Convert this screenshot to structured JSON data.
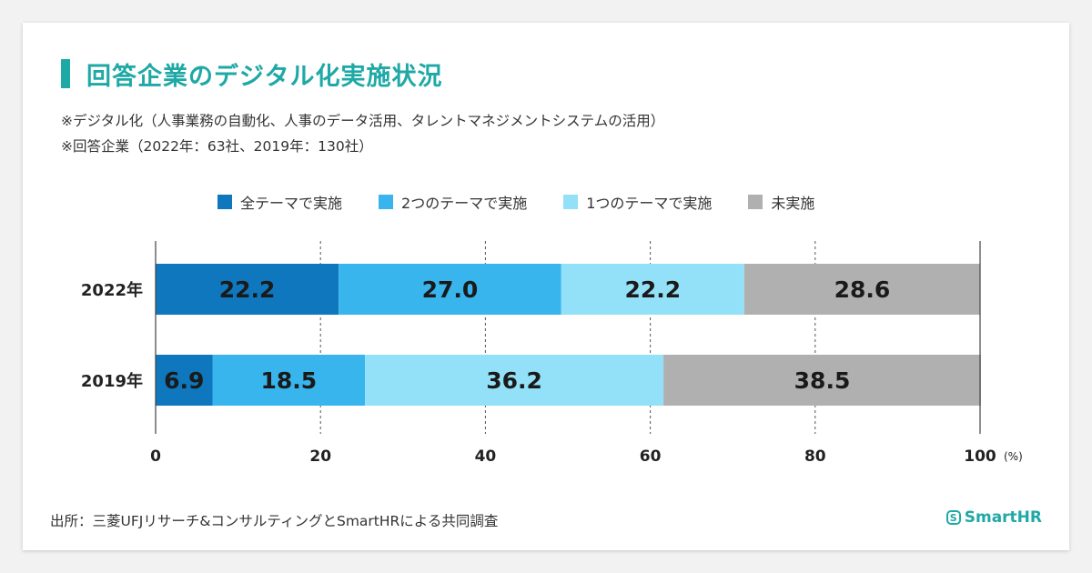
{
  "title": "回答企業のデジタル化実施状況",
  "notes": [
    "※デジタル化（人事業務の自動化、人事のデータ活用、タレントマネジメントシステムの活用）",
    "※回答企業（2022年：63社、2019年：130社）"
  ],
  "source": "出所：三菱UFJリサーチ&コンサルティングとSmartHRによる共同調査",
  "logo": {
    "mark": "S",
    "text": "SmartHR"
  },
  "chart_data": {
    "type": "bar",
    "orientation": "horizontal",
    "stacked": true,
    "categories": [
      "2022年",
      "2019年"
    ],
    "series": [
      {
        "name": "全テーマで実施",
        "values": [
          22.2,
          6.9
        ],
        "color": "#0e77bd",
        "labels": [
          "22.2",
          "6.9"
        ]
      },
      {
        "name": "2つのテーマで実施",
        "values": [
          27.0,
          18.5
        ],
        "color": "#37b5ec",
        "labels": [
          "27.0",
          "18.5"
        ]
      },
      {
        "name": "1つのテーマで実施",
        "values": [
          22.2,
          36.2
        ],
        "color": "#93e1f8",
        "labels": [
          "22.2",
          "36.2"
        ]
      },
      {
        "name": "未実施",
        "values": [
          28.6,
          38.5
        ],
        "color": "#b0b0b0",
        "labels": [
          "28.6",
          "38.5"
        ]
      }
    ],
    "xlim": [
      0,
      100
    ],
    "xticks": [
      0,
      20,
      40,
      60,
      80,
      100
    ],
    "xtick_labels": [
      "0",
      "20",
      "40",
      "60",
      "80",
      "100"
    ],
    "xunit": "(%)",
    "grid": "dashed vertical",
    "legend_position": "top"
  }
}
